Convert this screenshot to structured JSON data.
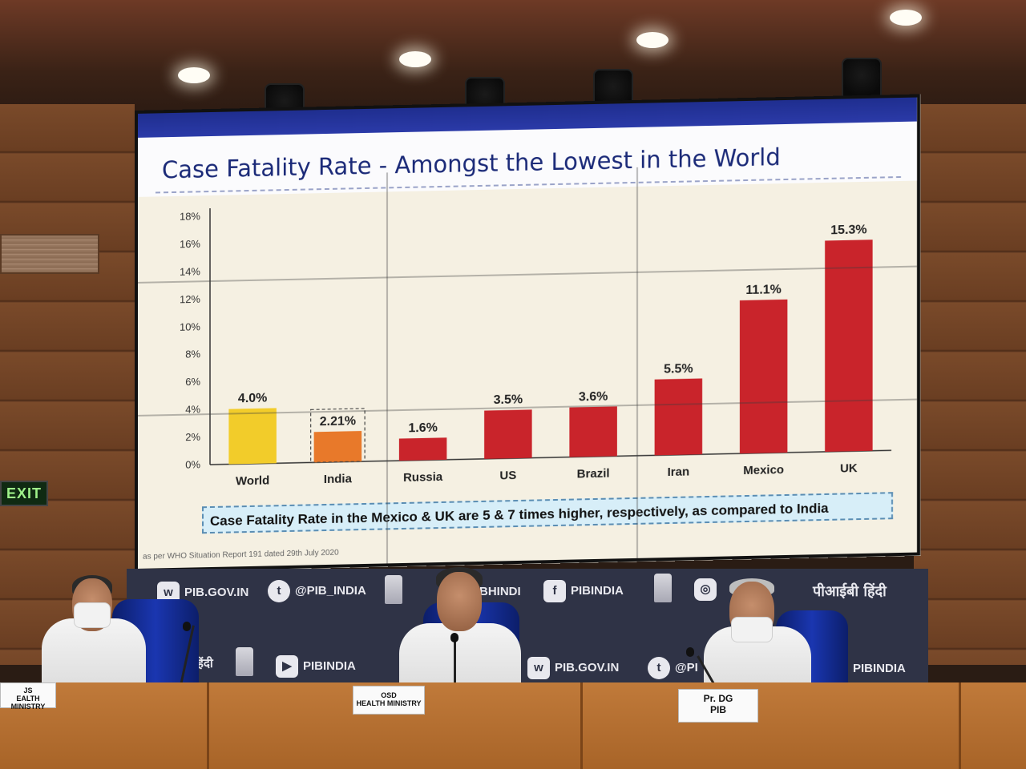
{
  "scene": {
    "exit_sign": "EXIT"
  },
  "slide": {
    "title": "Case Fatality Rate - Amongst the Lowest in the World",
    "callout": "Case Fatality Rate in the Mexico & UK are 5 & 7 times higher, respectively, as compared to India",
    "footnote": "as per WHO Situation Report 191 dated 29th July 2020"
  },
  "chart_data": {
    "type": "bar",
    "title": "Case Fatality Rate - Amongst the Lowest in the World",
    "xlabel": "",
    "ylabel": "",
    "categories": [
      "World",
      "India",
      "Russia",
      "US",
      "Brazil",
      "Iran",
      "Mexico",
      "UK"
    ],
    "values": [
      4.0,
      2.21,
      1.6,
      3.5,
      3.6,
      5.5,
      11.1,
      15.3
    ],
    "value_labels": [
      "4.0%",
      "2.21%",
      "1.6%",
      "3.5%",
      "3.6%",
      "5.5%",
      "11.1%",
      "15.3%"
    ],
    "ylim": [
      0,
      18
    ],
    "yticks": [
      "0%",
      "2%",
      "4%",
      "6%",
      "8%",
      "10%",
      "12%",
      "14%",
      "16%",
      "18%"
    ],
    "bar_colors": [
      "#f2cc2a",
      "#e8792a",
      "#c9242b",
      "#c9242b",
      "#c9242b",
      "#c9242b",
      "#c9242b",
      "#c9242b"
    ],
    "highlight": "India",
    "grid": false
  },
  "backdrop": {
    "website": "PIB.GOV.IN",
    "twitter": "@PIB_INDIA",
    "hindi_fragment": "BHINDI",
    "facebook": "PIBINDIA",
    "instagram_fragment": "IA",
    "hindi_name": "पीआईबी हिंदी",
    "hindi_short": "हिंदी",
    "youtube": "PIBINDIA",
    "website_2": "PIB.GOV.IN",
    "twitter_2_fragment": "@PI",
    "facebook_2": "PIBINDIA",
    "icons": {
      "www": "www-icon",
      "twitter": "twitter-icon",
      "facebook": "facebook-icon",
      "instagram": "instagram-icon",
      "youtube": "youtube-icon",
      "emblem": "national-emblem-icon"
    }
  },
  "nameplates": {
    "left": {
      "line1": "JS",
      "line2": "EALTH MINISTRY"
    },
    "center": {
      "line1": "OSD",
      "line2": "HEALTH MINISTRY"
    },
    "right": {
      "line1": "Pr. DG",
      "line2": "PIB"
    }
  }
}
